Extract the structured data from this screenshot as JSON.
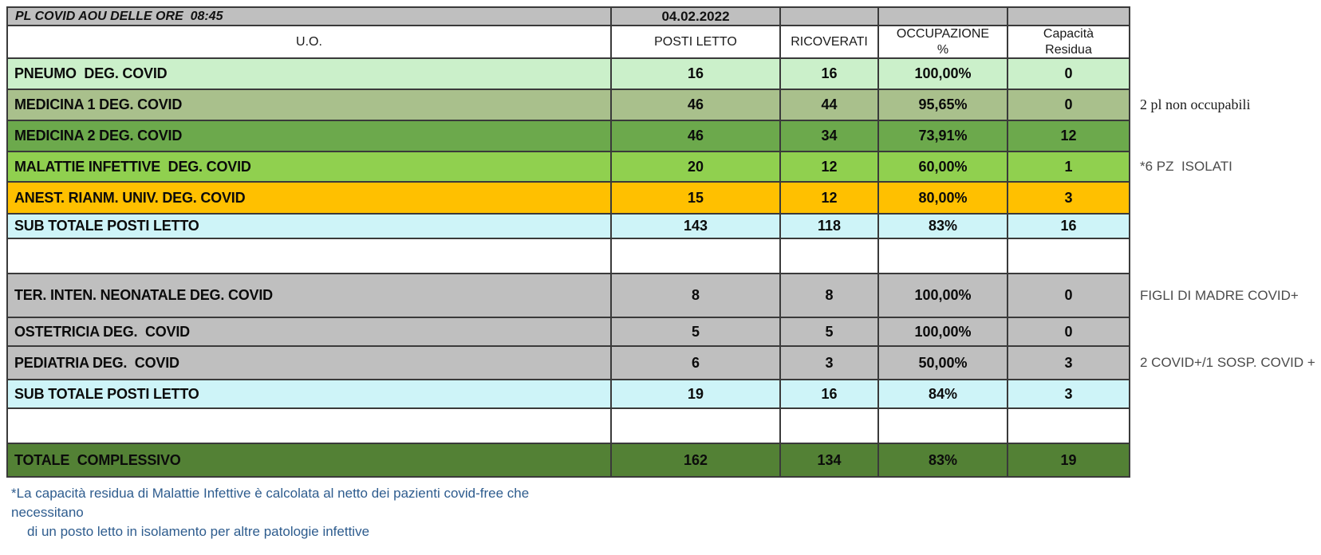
{
  "header": {
    "title": "PL COVID AOU DELLE ORE  08:45",
    "date": "04.02.2022"
  },
  "columns": {
    "uo": "U.O.",
    "posti_letto": "POSTI LETTO",
    "ricoverati": "RICOVERATI",
    "occupazione": "OCCUPAZIONE\n%",
    "capacita": "Capacità\nResidua"
  },
  "colors": {
    "header_gray": "#BFBFBF",
    "white": "#FFFFFF",
    "footnote_blue": "#2E5C8E"
  },
  "rows": [
    {
      "uo": "PNEUMO  DEG. COVID",
      "posti_letto": "16",
      "ricoverati": "16",
      "occupazione": "100,00%",
      "capacita_residua": "0",
      "note": "",
      "bg": "#CBF0CA"
    },
    {
      "uo": "MEDICINA 1 DEG. COVID",
      "posti_letto": "46",
      "ricoverati": "44",
      "occupazione": "95,65%",
      "capacita_residua": "0",
      "note": "2 pl non occupabili",
      "bg": "#A9C08C"
    },
    {
      "uo": "MEDICINA 2 DEG. COVID",
      "posti_letto": "46",
      "ricoverati": "34",
      "occupazione": "73,91%",
      "capacita_residua": "12",
      "note": "",
      "bg": "#6CA94C"
    },
    {
      "uo": "MALATTIE INFETTIVE  DEG. COVID",
      "posti_letto": "20",
      "ricoverati": "12",
      "occupazione": "60,00%",
      "capacita_residua": "1",
      "note": "*6 PZ  ISOLATI",
      "bg": "#90D04F"
    },
    {
      "uo": "ANEST. RIANM. UNIV. DEG. COVID",
      "posti_letto": "15",
      "ricoverati": "12",
      "occupazione": "80,00%",
      "capacita_residua": "3",
      "note": "",
      "bg": "#FFC000"
    },
    {
      "uo": "SUB TOTALE POSTI LETTO",
      "posti_letto": "143",
      "ricoverati": "118",
      "occupazione": "83%",
      "capacita_residua": "16",
      "note": "",
      "bg": "#CEF4F8"
    },
    {
      "uo": "",
      "posti_letto": "",
      "ricoverati": "",
      "occupazione": "",
      "capacita_residua": "",
      "note": "",
      "bg": "#FFFFFF"
    },
    {
      "uo": "TER. INTEN. NEONATALE DEG. COVID",
      "posti_letto": "8",
      "ricoverati": "8",
      "occupazione": "100,00%",
      "capacita_residua": "0",
      "note": "FIGLI DI MADRE COVID+",
      "bg": "#BFBFBF"
    },
    {
      "uo": "OSTETRICIA DEG.  COVID",
      "posti_letto": "5",
      "ricoverati": "5",
      "occupazione": "100,00%",
      "capacita_residua": "0",
      "note": "",
      "bg": "#BFBFBF"
    },
    {
      "uo": "PEDIATRIA DEG.  COVID",
      "posti_letto": "6",
      "ricoverati": "3",
      "occupazione": "50,00%",
      "capacita_residua": "3",
      "note": "2 COVID+/1 SOSP. COVID +",
      "bg": "#BFBFBF"
    },
    {
      "uo": "SUB TOTALE POSTI LETTO",
      "posti_letto": "19",
      "ricoverati": "16",
      "occupazione": "84%",
      "capacita_residua": "3",
      "note": "",
      "bg": "#CEF4F8"
    },
    {
      "uo": "",
      "posti_letto": "",
      "ricoverati": "",
      "occupazione": "",
      "capacita_residua": "",
      "note": "",
      "bg": "#FFFFFF"
    },
    {
      "uo": "TOTALE  COMPLESSIVO",
      "posti_letto": "162",
      "ricoverati": "134",
      "occupazione": "83%",
      "capacita_residua": "19",
      "note": "",
      "bg": "#538135"
    }
  ],
  "footnote": {
    "line1": "*La capacità residua di Malattie Infettive è calcolata al netto dei pazienti covid-free che",
    "line2": "necessitano",
    "line3": "di un posto letto in isolamento per altre patologie infettive"
  }
}
